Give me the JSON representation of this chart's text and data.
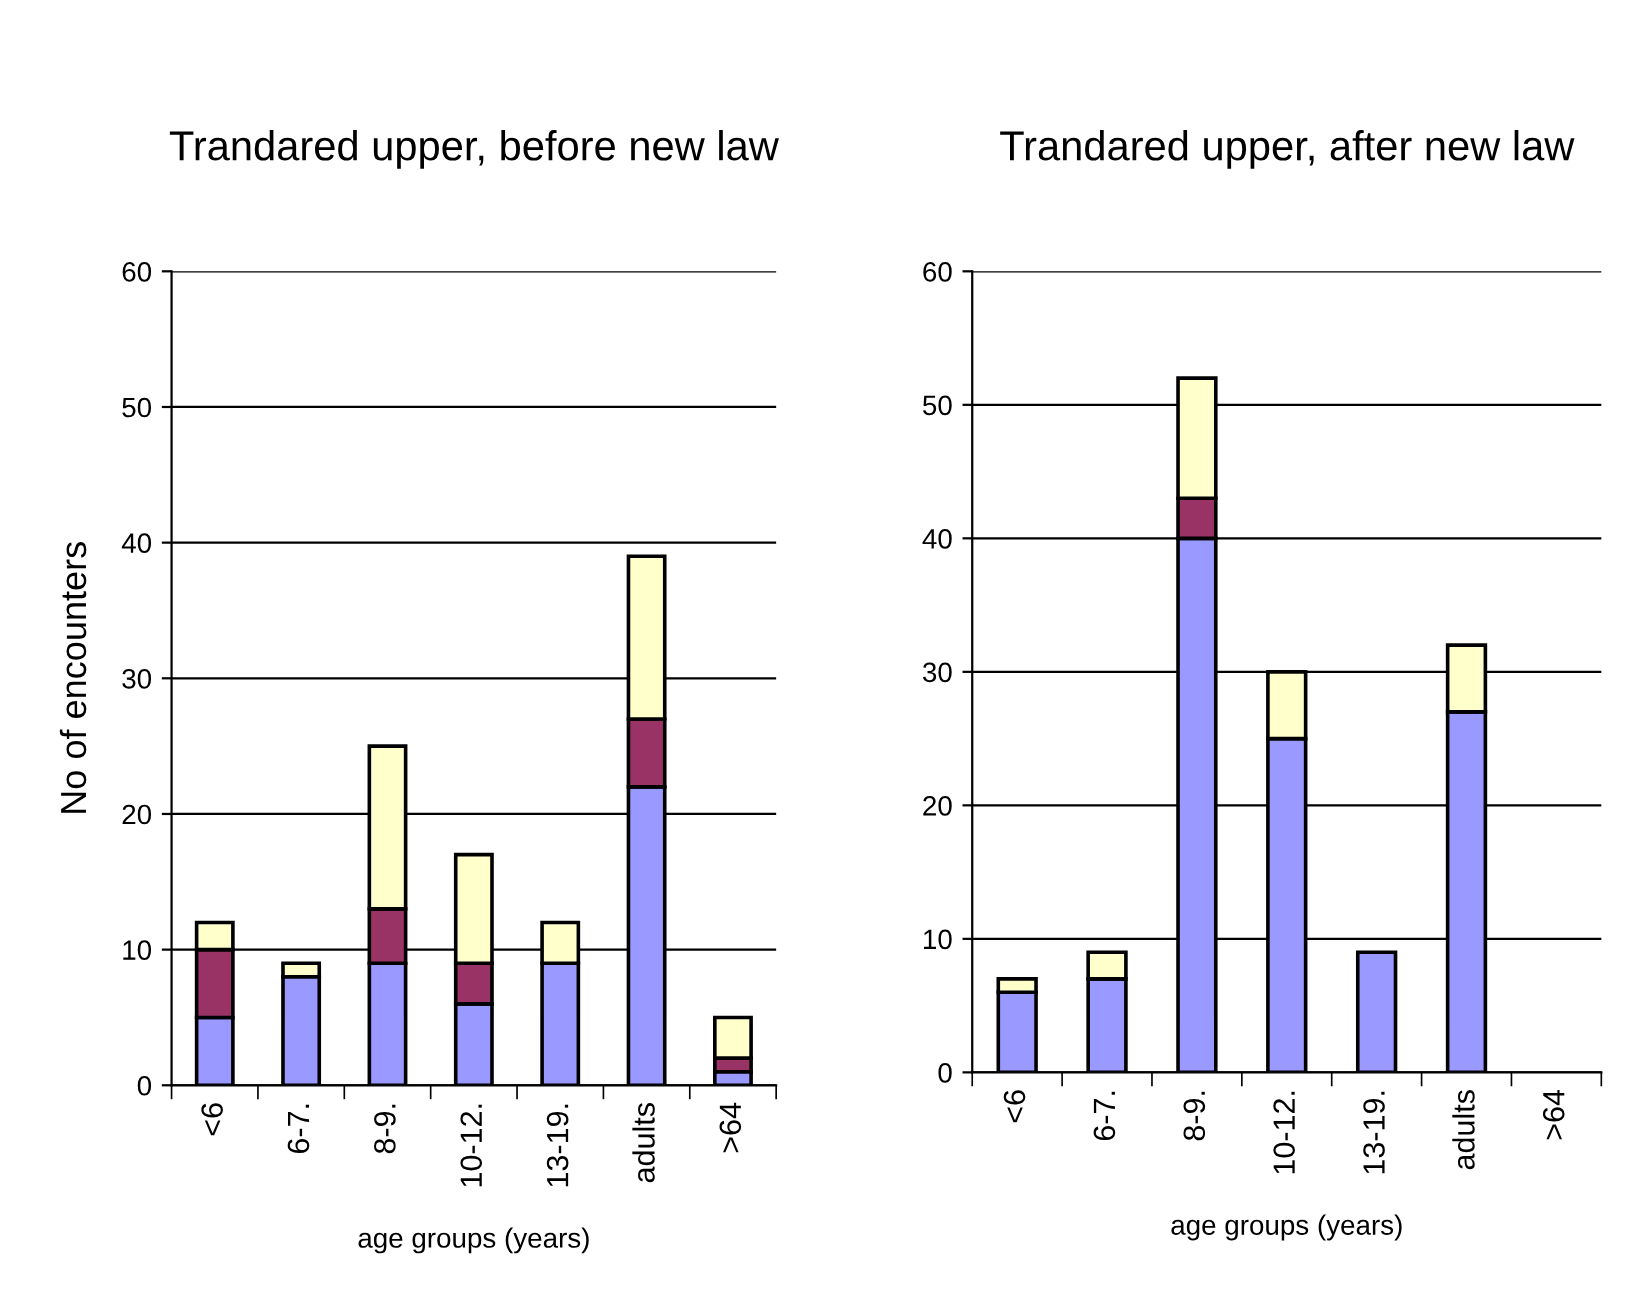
{
  "chart_data": [
    {
      "type": "bar",
      "stacked": true,
      "title": "Trandared upper, before new law",
      "xlabel": "age groups (years)",
      "ylabel": "No of encounters",
      "categories": [
        "<6",
        "6-7.",
        "8-9.",
        "10-12.",
        "13-19.",
        "adults",
        ">64"
      ],
      "series": [
        {
          "color": "#9999ff",
          "values": [
            5,
            8,
            9,
            6,
            9,
            22,
            1
          ]
        },
        {
          "color": "#993366",
          "values": [
            5,
            null,
            4,
            3,
            null,
            5,
            1
          ]
        },
        {
          "color": "#ffffcc",
          "values": [
            2,
            1,
            12,
            8,
            3,
            12,
            3
          ]
        }
      ],
      "ylim": [
        0,
        60
      ],
      "yticks": [
        0,
        10,
        20,
        30,
        40,
        50,
        60
      ],
      "grid": "y"
    },
    {
      "type": "bar",
      "stacked": true,
      "title": "Trandared upper, after new law",
      "xlabel": "age groups (years)",
      "categories": [
        "<6",
        "6-7.",
        "8-9.",
        "10-12.",
        "13-19.",
        "adults",
        ">64"
      ],
      "series": [
        {
          "color": "#9999ff",
          "values": [
            6,
            7,
            40,
            25,
            9,
            27,
            null
          ]
        },
        {
          "color": "#993366",
          "values": [
            null,
            null,
            3,
            null,
            null,
            null,
            null
          ]
        },
        {
          "color": "#ffffcc",
          "values": [
            1,
            2,
            9,
            5,
            null,
            5,
            null
          ]
        }
      ],
      "ylim": [
        0,
        60
      ],
      "yticks": [
        0,
        10,
        20,
        30,
        40,
        50,
        60
      ],
      "grid": "y"
    }
  ]
}
